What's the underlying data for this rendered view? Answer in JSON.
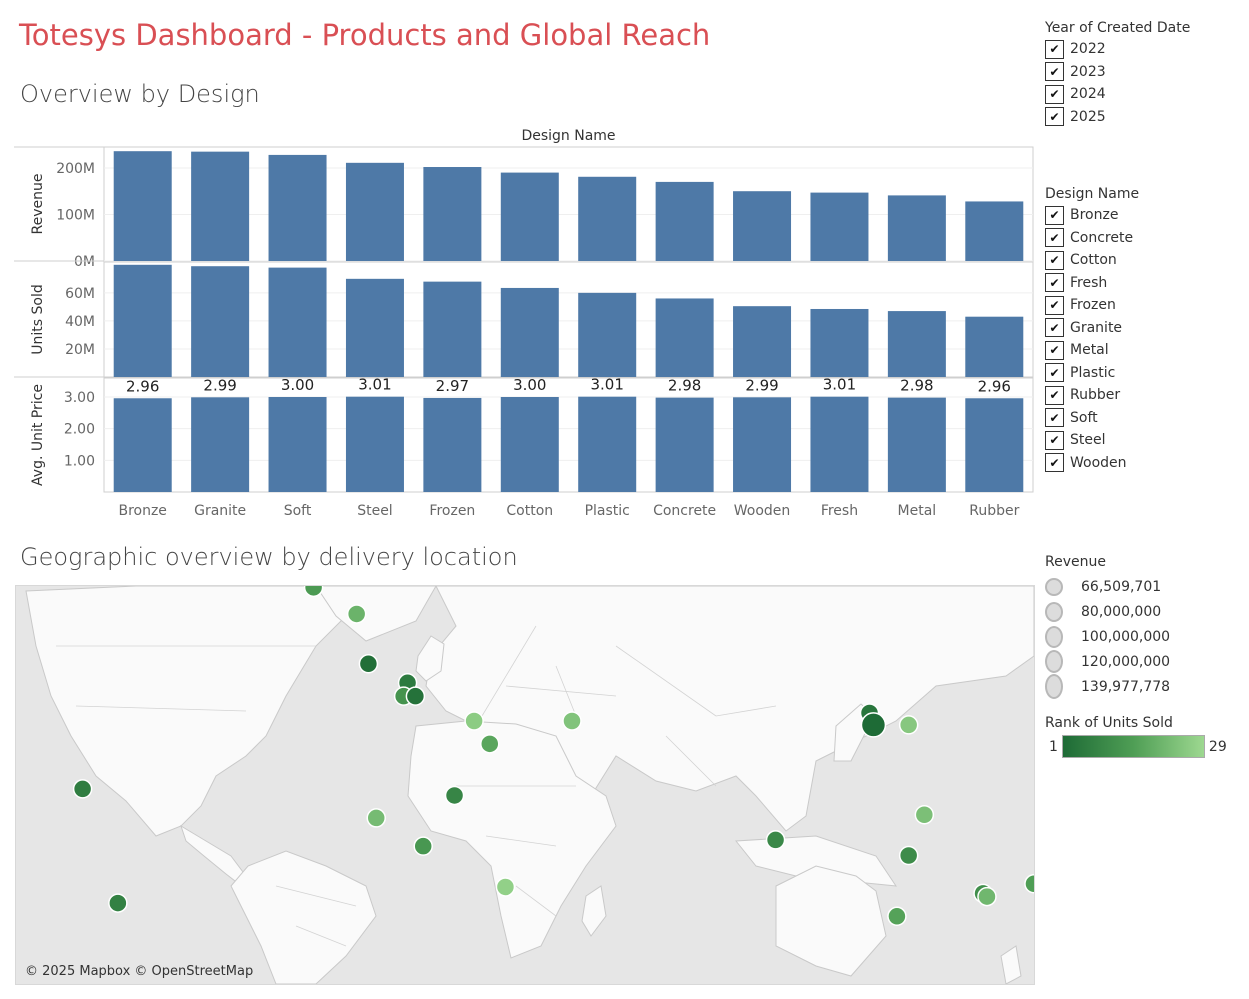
{
  "dashboard_title": "Totesys Dashboard - Products and Global Reach",
  "section1_title": "Overview by Design",
  "section2_title": "Geographic overview by delivery location",
  "chart_data": {
    "type": "bar",
    "title": "Design Name",
    "categories": [
      "Bronze",
      "Granite",
      "Soft",
      "Steel",
      "Frozen",
      "Cotton",
      "Plastic",
      "Concrete",
      "Wooden",
      "Fresh",
      "Metal",
      "Rubber"
    ],
    "series": [
      {
        "name": "Revenue",
        "ylabel": "Revenue",
        "ticks": [
          0,
          100000000,
          200000000
        ],
        "tick_labels": [
          "0M",
          "100M",
          "200M"
        ],
        "ylim": [
          0,
          245000000
        ],
        "values": [
          236000000,
          235000000,
          228000000,
          211000000,
          202000000,
          190000000,
          181000000,
          170000000,
          150000000,
          147000000,
          141000000,
          128000000
        ]
      },
      {
        "name": "Units Sold",
        "ylabel": "Units Sold",
        "ticks": [
          20000000,
          40000000,
          60000000
        ],
        "tick_labels": [
          "20M",
          "40M",
          "60M"
        ],
        "ylim": [
          0,
          82000000
        ],
        "values": [
          80000000,
          79000000,
          78000000,
          70000000,
          68000000,
          63500000,
          60000000,
          56000000,
          50500000,
          48500000,
          47000000,
          43000000
        ]
      },
      {
        "name": "Avg. Unit Price",
        "ylabel": "Avg. Unit Price",
        "ticks": [
          1,
          2,
          3
        ],
        "tick_labels": [
          "1.00",
          "2.00",
          "3.00"
        ],
        "ylim": [
          0,
          3.6
        ],
        "values": [
          2.96,
          2.99,
          3.0,
          3.01,
          2.97,
          3.0,
          3.01,
          2.98,
          2.99,
          3.01,
          2.98,
          2.96
        ],
        "labels": [
          "2.96",
          "2.99",
          "3.00",
          "3.01",
          "2.97",
          "3.00",
          "3.01",
          "2.98",
          "2.99",
          "3.01",
          "2.98",
          "2.96"
        ]
      }
    ],
    "bar_color": "#4e79a7"
  },
  "year_filter": {
    "title": "Year of Created Date",
    "items": [
      "2022",
      "2023",
      "2024",
      "2025"
    ]
  },
  "design_filter": {
    "title": "Design Name",
    "items": [
      "Bronze",
      "Concrete",
      "Cotton",
      "Fresh",
      "Frozen",
      "Granite",
      "Metal",
      "Plastic",
      "Rubber",
      "Soft",
      "Steel",
      "Wooden"
    ]
  },
  "map": {
    "attribution": "© 2025 Mapbox © OpenStreetMap",
    "locations": [
      {
        "lon": -16,
        "lat": 64,
        "rank": 14
      },
      {
        "lon": -5,
        "lat": 60,
        "rank": 20
      },
      {
        "lon": -2,
        "lat": 51,
        "rank": 2
      },
      {
        "lon": 8,
        "lat": 47,
        "rank": 5
      },
      {
        "lon": 7,
        "lat": 44,
        "rank": 12
      },
      {
        "lon": 10,
        "lat": 44,
        "rank": 3
      },
      {
        "lon": 25,
        "lat": 38,
        "rank": 26
      },
      {
        "lon": 29,
        "lat": 32,
        "rank": 17
      },
      {
        "lon": 50,
        "lat": 38,
        "rank": 24
      },
      {
        "lon": 126,
        "lat": 40,
        "rank": 4
      },
      {
        "lon": 127,
        "lat": 37,
        "rank": 1
      },
      {
        "lon": 136,
        "lat": 37,
        "rank": 25
      },
      {
        "lon": -75,
        "lat": 19,
        "rank": 6
      },
      {
        "lon": 0,
        "lat": 10,
        "rank": 22
      },
      {
        "lon": 20,
        "lat": 17,
        "rank": 8
      },
      {
        "lon": 12,
        "lat": 1,
        "rank": 13
      },
      {
        "lon": 33,
        "lat": -12,
        "rank": 27
      },
      {
        "lon": -66,
        "lat": -17,
        "rank": 7
      },
      {
        "lon": 102,
        "lat": 3,
        "rank": 9
      },
      {
        "lon": 140,
        "lat": 11,
        "rank": 23
      },
      {
        "lon": 136,
        "lat": -2,
        "rank": 10
      },
      {
        "lon": 133,
        "lat": -21,
        "rank": 16
      },
      {
        "lon": 168,
        "lat": -11,
        "rank": 15
      },
      {
        "lon": 155,
        "lat": -14,
        "rank": 11
      },
      {
        "lon": 156,
        "lat": -15,
        "rank": 21
      }
    ]
  },
  "revenue_legend": {
    "title": "Revenue",
    "values": [
      "66,509,701",
      "80,000,000",
      "100,000,000",
      "120,000,000",
      "139,977,778"
    ]
  },
  "rank_legend": {
    "title": "Rank of Units Sold",
    "min": "1",
    "max": "29"
  }
}
